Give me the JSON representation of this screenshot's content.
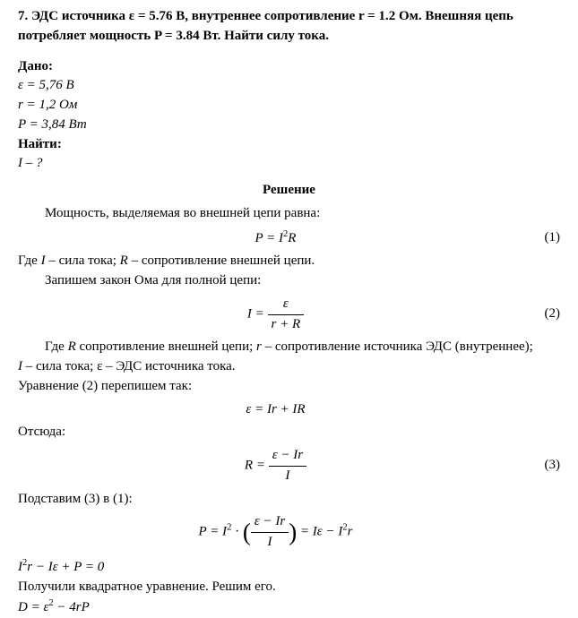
{
  "problem_title": "7. ЭДС источника ε = 5.76 В, внутреннее сопротивление r = 1.2 Ом. Внешняя цепь потребляет мощность P = 3.84 Вт. Найти силу тока.",
  "given_label": "Дано:",
  "given": {
    "emf": "ε = 5,76 В",
    "r": "r = 1,2 Ом",
    "P": "P = 3,84 Вт"
  },
  "find_label": "Найти:",
  "find_value": "I – ?",
  "solution_label": "Решение",
  "lines": {
    "l1": "Мощность, выделяемая во внешней цепи равна:",
    "l2_where": "Где ",
    "l2_I": "I",
    "l2_mid": "  – сила тока;  ",
    "l2_R": "R",
    "l2_end": "  – сопротивление внешней цепи.",
    "l3": "Запишем закон Ома для полной цепи:",
    "l4_pre": "Где ",
    "l4_R": "R",
    "l4_a": " сопротивление внешней цепи; ",
    "l4_r": "r",
    "l4_b": " – сопротивление источника ЭДС (внутреннее);",
    "l5_I": "I",
    "l5_a": " – сила тока; ε – ЭДС источника тока.",
    "l6": "Уравнение (2) перепишем так:",
    "l7": "Отсюда:",
    "l8": "Подставим (3) в (1):",
    "l9": "Получили квадратное уравнение. Решим его."
  },
  "eq": {
    "e1_lhs": "P = I",
    "e1_sup": "2",
    "e1_R": "R",
    "n1": "(1)",
    "e2_lhs": "I = ",
    "e2_num": "ε",
    "e2_den": "r + R",
    "n2": "(2)",
    "e3": "ε = Ir + IR",
    "e4_lhs": "R = ",
    "e4_num": "ε − Ir",
    "e4_den": "I",
    "n3": "(3)",
    "e5_a": "P = I",
    "e5_sup": "2",
    "e5_dot": " · ",
    "e5_num": "ε − Ir",
    "e5_den": "I",
    "e5_eq": " = Iε − I",
    "e5_sup2": "2",
    "e5_r": "r",
    "e6_a": "I",
    "e6_sup": "2",
    "e6_rest": "r − Iε + P = 0",
    "e7_a": "D = ε",
    "e7_sup": "2",
    "e7_rest": " − 4rP"
  }
}
